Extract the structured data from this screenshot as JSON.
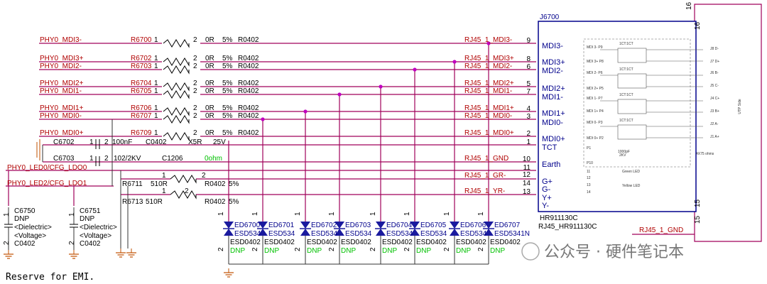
{
  "schematic": {
    "connector": {
      "ref": "J6700",
      "part": "HR911130C",
      "part_full": "RJ45_HR911130C",
      "pins": [
        {
          "name": "MDI3-",
          "num": "9"
        },
        {
          "name": "MDI3+",
          "num": "8"
        },
        {
          "name": "MDI2-",
          "num": "6"
        },
        {
          "name": "MDI2+",
          "num": "5"
        },
        {
          "name": "MDI1-",
          "num": "7"
        },
        {
          "name": "MDI1+",
          "num": "4"
        },
        {
          "name": "MDI0-",
          "num": "3"
        },
        {
          "name": "MDI0+",
          "num": "2"
        },
        {
          "name": "TCT",
          "num": "1"
        },
        {
          "name": "Earth",
          "num": "10"
        },
        {
          "name": "",
          "num": "11"
        },
        {
          "name": "G+",
          "num": "12"
        },
        {
          "name": "G-",
          "num": "14"
        },
        {
          "name": "Y+",
          "num": "13"
        },
        {
          "name": "Y-",
          "num": ""
        }
      ],
      "top_pin": "16",
      "top_pin_outer": "16",
      "bottom_pin": "15",
      "bottom_pin_outer": "15",
      "side_label": "UTP Side",
      "inner_labels": [
        "MDI 3- P9",
        "MDI 3+ P8",
        "MDI 2- P6",
        "MDI 2+ P5",
        "MDI 1- P7",
        "MDI 1+ P4",
        "MDI 0- P3",
        "MDI 0+ P2",
        "P1",
        "P10",
        "11",
        "12",
        "13",
        "14"
      ],
      "inner_right": [
        "J8 D-",
        "J7 D+",
        "J6 B-",
        "J5 C-",
        "J4 C+",
        "J3 B+",
        "J2 A-",
        "J1 A+"
      ],
      "inner_misc": [
        "1CT:1CT",
        "1CT:1CT",
        "1CT:1CT",
        "1CT:1CT",
        "1000pF",
        "2KV",
        "4X75 ohms",
        "Green LED",
        "Yellow LED"
      ]
    },
    "resistors": [
      {
        "net": "PHY0_MDI3-",
        "ref": "R6700",
        "p1": "1",
        "p2": "2",
        "val": "0R",
        "tol": "5%",
        "pkg": "R0402",
        "out": "RJ45_1_MDI3-"
      },
      {
        "net": "PHY0_MDI3+",
        "ref": "R6702",
        "p1": "1",
        "p2": "2",
        "val": "0R",
        "tol": "5%",
        "pkg": "R0402",
        "out": "RJ45_1_MDI3+"
      },
      {
        "net": "PHY0_MDI2-",
        "ref": "R6703",
        "p1": "1",
        "p2": "2",
        "val": "0R",
        "tol": "5%",
        "pkg": "R0402",
        "out": "RJ45_1_MDI2-"
      },
      {
        "net": "PHY0_MDI2+",
        "ref": "R6704",
        "p1": "1",
        "p2": "2",
        "val": "0R",
        "tol": "5%",
        "pkg": "R0402",
        "out": "RJ45_1_MDI2+"
      },
      {
        "net": "PHY0_MDI1-",
        "ref": "R6705",
        "p1": "1",
        "p2": "2",
        "val": "0R",
        "tol": "5%",
        "pkg": "R0402",
        "out": "RJ45_1_MDI1-"
      },
      {
        "net": "PHY0_MDI1+",
        "ref": "R6706",
        "p1": "1",
        "p2": "2",
        "val": "0R",
        "tol": "5%",
        "pkg": "R0402",
        "out": "RJ45_1_MDI1+"
      },
      {
        "net": "PHY0_MDI0-",
        "ref": "R6707",
        "p1": "1",
        "p2": "2",
        "val": "0R",
        "tol": "5%",
        "pkg": "R0402",
        "out": "RJ45_1_MDI0-"
      },
      {
        "net": "PHY0_MDI0+",
        "ref": "R6709",
        "p1": "1",
        "p2": "2",
        "val": "0R",
        "tol": "5%",
        "pkg": "R0402",
        "out": "RJ45_1_MDI0+"
      }
    ],
    "caps": [
      {
        "ref": "C6702",
        "p1": "1",
        "p2": "2",
        "val": "100nF",
        "pkg": "C0402",
        "diel": "X5R",
        "volt": "25V"
      },
      {
        "ref": "C6703",
        "p1": "1",
        "p2": "2",
        "val": "102/2KV",
        "pkg": "C1206",
        "extra": "0ohm"
      }
    ],
    "gnd_net": "RJ45_1_GND",
    "led_nets": {
      "led0": "PHY0_LED0/CFG_LDO0",
      "led2": "PHY0_LED2/CFG_LDO1",
      "gm": "RJ45_1_GR-",
      "ym": "RJ45_1_YR-"
    },
    "led_res": [
      {
        "ref": "R6711",
        "val": "510R",
        "pkg": "R0402",
        "tol": "5%",
        "p1": "1",
        "p2": "2"
      },
      {
        "ref": "R6713",
        "val": "510R",
        "pkg": "R0402",
        "tol": "5%",
        "p1": "1",
        "p2": "2"
      }
    ],
    "dnp_caps": [
      {
        "ref": "C6750",
        "dnp": "DNP",
        "diel": "<Dielectric>",
        "volt": "<Voltage>",
        "pkg": "C0402",
        "p1": "1",
        "p2": "2"
      },
      {
        "ref": "C6751",
        "dnp": "DNP",
        "diel": "<Dielectric>",
        "volt": "<Voltage>",
        "pkg": "C0402",
        "p1": "1",
        "p2": "2"
      }
    ],
    "esd": [
      {
        "ref": "ED6700",
        "part": "ESD534",
        "pkg": "ESD0402",
        "dnp": "DNP",
        "p1": "1",
        "p2": "2"
      },
      {
        "ref": "ED6701",
        "part": "ESD534",
        "pkg": "ESD0402",
        "dnp": "DNP",
        "p1": "1",
        "p2": "2"
      },
      {
        "ref": "ED6702",
        "part": "ESD534",
        "pkg": "ESD0402",
        "dnp": "DNP",
        "p1": "1",
        "p2": "2"
      },
      {
        "ref": "ED6703",
        "part": "ESD534",
        "pkg": "ESD0402",
        "dnp": "DNP",
        "p1": "1",
        "p2": "2"
      },
      {
        "ref": "ED6704",
        "part": "ESD534",
        "pkg": "ESD0402",
        "dnp": "DNP",
        "p1": "1",
        "p2": "2"
      },
      {
        "ref": "ED6705",
        "part": "ESD534",
        "pkg": "ESD0402",
        "dnp": "DNP",
        "p1": "1",
        "p2": "2"
      },
      {
        "ref": "ED6706",
        "part": "ESD534",
        "pkg": "ESD0402",
        "dnp": "DNP",
        "p1": "1",
        "p2": "2"
      },
      {
        "ref": "ED6707",
        "part": "ESD5341N",
        "pkg": "ESD0402",
        "dnp": "DNP",
        "p1": "1",
        "p2": "2"
      }
    ],
    "note": "Reserve for EMI.",
    "watermark": "公众号 · 硬件笔记本"
  }
}
